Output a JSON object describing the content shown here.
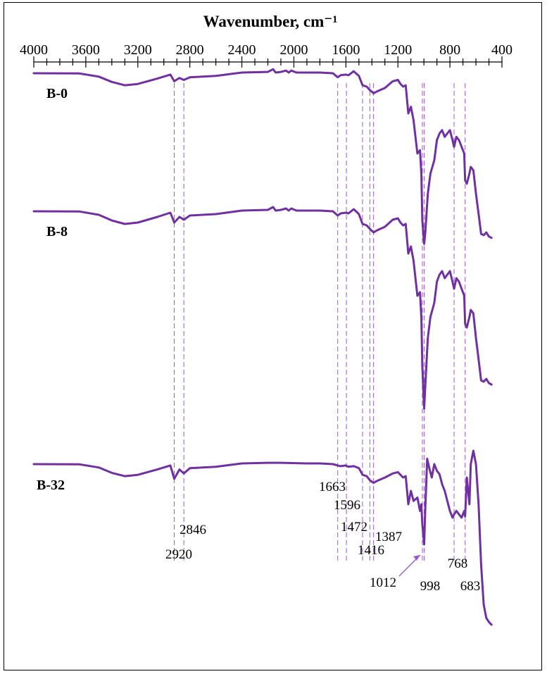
{
  "chart_data": {
    "type": "line",
    "title": "Wavenumber, cm⁻¹",
    "xlabel": "Wavenumber, cm⁻¹",
    "ylabel": "",
    "x_axis_position": "top",
    "x_reversed": true,
    "xlim": [
      4000,
      400
    ],
    "major_ticks": [
      4000,
      3600,
      3200,
      2800,
      2400,
      2000,
      1600,
      1200,
      800,
      400
    ],
    "tick_labels": [
      "4000",
      "3600",
      "3200",
      "2800",
      "2400",
      "2000",
      "1600",
      "1200",
      "800",
      "400"
    ],
    "minor_tick_step": 100,
    "grid": false,
    "line_color": "#7030A0",
    "series": [
      {
        "name": "B-0",
        "points": [
          [
            4000,
            0
          ],
          [
            3650,
            0.3
          ],
          [
            3500,
            5
          ],
          [
            3400,
            13
          ],
          [
            3300,
            18
          ],
          [
            3200,
            16
          ],
          [
            3050,
            8
          ],
          [
            2950,
            2
          ],
          [
            2920,
            12
          ],
          [
            2880,
            7
          ],
          [
            2846,
            10
          ],
          [
            2800,
            6
          ],
          [
            2600,
            4
          ],
          [
            2400,
            -1
          ],
          [
            2200,
            -2
          ],
          [
            2160,
            -6
          ],
          [
            2140,
            -1
          ],
          [
            2100,
            -2
          ],
          [
            2060,
            -4
          ],
          [
            2040,
            -1
          ],
          [
            2020,
            -4
          ],
          [
            1980,
            -1
          ],
          [
            1900,
            -1
          ],
          [
            1800,
            -1
          ],
          [
            1700,
            0
          ],
          [
            1663,
            6
          ],
          [
            1640,
            3
          ],
          [
            1600,
            2
          ],
          [
            1580,
            3
          ],
          [
            1540,
            -3
          ],
          [
            1500,
            4
          ],
          [
            1472,
            18
          ],
          [
            1440,
            20
          ],
          [
            1416,
            25
          ],
          [
            1387,
            30
          ],
          [
            1360,
            27
          ],
          [
            1300,
            22
          ],
          [
            1240,
            12
          ],
          [
            1200,
            10
          ],
          [
            1180,
            16
          ],
          [
            1160,
            20
          ],
          [
            1140,
            18
          ],
          [
            1120,
            60
          ],
          [
            1100,
            50
          ],
          [
            1080,
            70
          ],
          [
            1050,
            120
          ],
          [
            1030,
            115
          ],
          [
            1020,
            150
          ],
          [
            1012,
            220
          ],
          [
            998,
            255
          ],
          [
            990,
            240
          ],
          [
            970,
            180
          ],
          [
            950,
            150
          ],
          [
            920,
            130
          ],
          [
            900,
            100
          ],
          [
            880,
            90
          ],
          [
            860,
            85
          ],
          [
            840,
            95
          ],
          [
            820,
            90
          ],
          [
            800,
            85
          ],
          [
            780,
            100
          ],
          [
            768,
            110
          ],
          [
            750,
            95
          ],
          [
            730,
            100
          ],
          [
            710,
            110
          ],
          [
            690,
            120
          ],
          [
            683,
            160
          ],
          [
            670,
            165
          ],
          [
            650,
            150
          ],
          [
            640,
            140
          ],
          [
            620,
            145
          ],
          [
            600,
            180
          ],
          [
            580,
            210
          ],
          [
            560,
            240
          ],
          [
            540,
            242
          ],
          [
            520,
            238
          ],
          [
            500,
            244
          ],
          [
            480,
            246
          ]
        ]
      },
      {
        "name": "B-8",
        "points": [
          [
            4000,
            0
          ],
          [
            3650,
            0.3
          ],
          [
            3500,
            5
          ],
          [
            3400,
            13
          ],
          [
            3300,
            18
          ],
          [
            3200,
            16
          ],
          [
            3050,
            8
          ],
          [
            2950,
            2
          ],
          [
            2920,
            16
          ],
          [
            2880,
            8
          ],
          [
            2846,
            12
          ],
          [
            2800,
            6
          ],
          [
            2600,
            4
          ],
          [
            2400,
            -1
          ],
          [
            2200,
            -2
          ],
          [
            2160,
            -6
          ],
          [
            2140,
            -1
          ],
          [
            2100,
            -2
          ],
          [
            2060,
            -4
          ],
          [
            2040,
            -1
          ],
          [
            2020,
            -4
          ],
          [
            1980,
            -1
          ],
          [
            1900,
            -1
          ],
          [
            1800,
            -1
          ],
          [
            1700,
            0
          ],
          [
            1663,
            6
          ],
          [
            1640,
            3
          ],
          [
            1600,
            2
          ],
          [
            1580,
            3
          ],
          [
            1540,
            -3
          ],
          [
            1500,
            4
          ],
          [
            1472,
            18
          ],
          [
            1440,
            20
          ],
          [
            1416,
            25
          ],
          [
            1387,
            30
          ],
          [
            1360,
            27
          ],
          [
            1300,
            22
          ],
          [
            1240,
            12
          ],
          [
            1200,
            10
          ],
          [
            1180,
            16
          ],
          [
            1160,
            20
          ],
          [
            1140,
            18
          ],
          [
            1120,
            60
          ],
          [
            1100,
            50
          ],
          [
            1080,
            70
          ],
          [
            1050,
            120
          ],
          [
            1030,
            115
          ],
          [
            1020,
            150
          ],
          [
            1012,
            220
          ],
          [
            998,
            280
          ],
          [
            990,
            250
          ],
          [
            970,
            180
          ],
          [
            950,
            150
          ],
          [
            920,
            130
          ],
          [
            900,
            100
          ],
          [
            880,
            90
          ],
          [
            860,
            85
          ],
          [
            840,
            95
          ],
          [
            820,
            90
          ],
          [
            800,
            85
          ],
          [
            780,
            100
          ],
          [
            768,
            110
          ],
          [
            750,
            95
          ],
          [
            730,
            100
          ],
          [
            710,
            110
          ],
          [
            690,
            120
          ],
          [
            683,
            160
          ],
          [
            670,
            165
          ],
          [
            650,
            150
          ],
          [
            640,
            140
          ],
          [
            620,
            145
          ],
          [
            600,
            180
          ],
          [
            580,
            210
          ],
          [
            560,
            240
          ],
          [
            540,
            242
          ],
          [
            520,
            238
          ],
          [
            500,
            244
          ],
          [
            480,
            246
          ]
        ]
      },
      {
        "name": "B-32",
        "points": [
          [
            4000,
            0
          ],
          [
            3650,
            0.3
          ],
          [
            3500,
            5
          ],
          [
            3400,
            13
          ],
          [
            3300,
            18
          ],
          [
            3200,
            16
          ],
          [
            3050,
            8
          ],
          [
            2950,
            2
          ],
          [
            2920,
            22
          ],
          [
            2880,
            8
          ],
          [
            2846,
            14
          ],
          [
            2800,
            6
          ],
          [
            2600,
            4
          ],
          [
            2400,
            -1
          ],
          [
            2200,
            -2
          ],
          [
            2100,
            -2
          ],
          [
            1900,
            -1
          ],
          [
            1800,
            -1
          ],
          [
            1700,
            0
          ],
          [
            1663,
            2
          ],
          [
            1640,
            3
          ],
          [
            1600,
            2
          ],
          [
            1580,
            4
          ],
          [
            1540,
            3
          ],
          [
            1500,
            6
          ],
          [
            1472,
            16
          ],
          [
            1440,
            18
          ],
          [
            1416,
            24
          ],
          [
            1387,
            28
          ],
          [
            1360,
            25
          ],
          [
            1300,
            20
          ],
          [
            1240,
            14
          ],
          [
            1200,
            12
          ],
          [
            1180,
            16
          ],
          [
            1160,
            20
          ],
          [
            1140,
            18
          ],
          [
            1120,
            60
          ],
          [
            1100,
            40
          ],
          [
            1080,
            55
          ],
          [
            1050,
            50
          ],
          [
            1030,
            70
          ],
          [
            1020,
            60
          ],
          [
            1012,
            90
          ],
          [
            998,
            120
          ],
          [
            990,
            70
          ],
          [
            975,
            -8
          ],
          [
            960,
            5
          ],
          [
            940,
            20
          ],
          [
            920,
            0
          ],
          [
            900,
            10
          ],
          [
            880,
            15
          ],
          [
            860,
            30
          ],
          [
            840,
            40
          ],
          [
            820,
            55
          ],
          [
            800,
            70
          ],
          [
            780,
            80
          ],
          [
            768,
            75
          ],
          [
            750,
            70
          ],
          [
            730,
            75
          ],
          [
            710,
            80
          ],
          [
            690,
            70
          ],
          [
            683,
            78
          ],
          [
            670,
            20
          ],
          [
            650,
            60
          ],
          [
            640,
            0
          ],
          [
            620,
            -20
          ],
          [
            600,
            0
          ],
          [
            580,
            60
          ],
          [
            560,
            150
          ],
          [
            540,
            210
          ],
          [
            520,
            230
          ],
          [
            500,
            236
          ],
          [
            480,
            240
          ]
        ]
      }
    ],
    "reference_lines": [
      2920,
      2846,
      1663,
      1596,
      1472,
      1416,
      1387,
      1012,
      998,
      768,
      683
    ],
    "annotations": [
      {
        "text": "2920",
        "x": 2920,
        "series": "B-32"
      },
      {
        "text": "2846",
        "x": 2846,
        "series": "B-32"
      },
      {
        "text": "1663",
        "x": 1663,
        "series": "B-32"
      },
      {
        "text": "1596",
        "x": 1596,
        "series": "B-32"
      },
      {
        "text": "1472",
        "x": 1472,
        "series": "B-32"
      },
      {
        "text": "1416",
        "x": 1416,
        "series": "B-32"
      },
      {
        "text": "1387",
        "x": 1387,
        "series": "B-32"
      },
      {
        "text": "1012",
        "x": 1012,
        "series": "B-32"
      },
      {
        "text": "998",
        "x": 998,
        "series": "B-32"
      },
      {
        "text": "768",
        "x": 768,
        "series": "B-32"
      },
      {
        "text": "683",
        "x": 683,
        "series": "B-32"
      }
    ]
  }
}
